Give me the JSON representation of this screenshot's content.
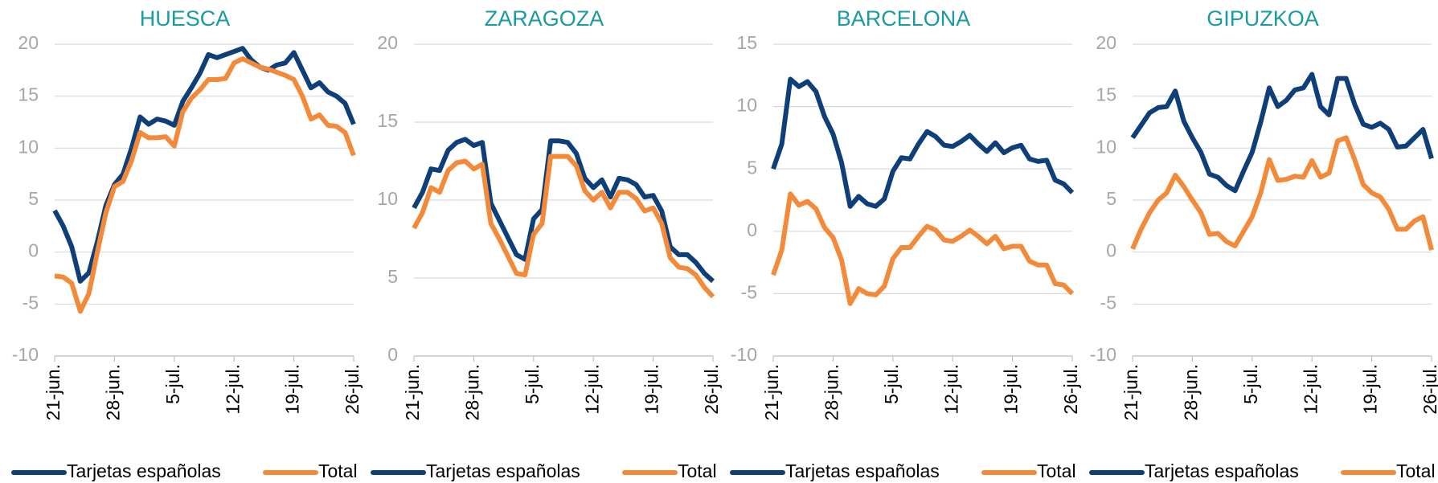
{
  "chart_data": [
    {
      "type": "line",
      "title": "HUESCA",
      "categories": [
        "21-jun.",
        null,
        null,
        null,
        null,
        null,
        null,
        "28-jun.",
        null,
        null,
        null,
        null,
        null,
        null,
        "5-jul.",
        null,
        null,
        null,
        null,
        null,
        null,
        "12-jul.",
        null,
        null,
        null,
        null,
        null,
        null,
        "19-jul.",
        null,
        null,
        null,
        null,
        null,
        null,
        "26-jul."
      ],
      "series": [
        {
          "name": "Tarjetas españolas",
          "color": "#0e3f78",
          "values": [
            4,
            2.5,
            0.5,
            -2.8,
            -2,
            1,
            4.5,
            6.5,
            7.5,
            10,
            13,
            12.3,
            12.8,
            12.6,
            12.2,
            14.5,
            15.8,
            17.2,
            19,
            18.7,
            19,
            19.3,
            19.6,
            18.5,
            17.8,
            17.5,
            18,
            18.2,
            19.2,
            17.5,
            15.8,
            16.3,
            15.4,
            15,
            14.3,
            12.3
          ]
        },
        {
          "name": "Total",
          "color": "#f28a3a",
          "values": [
            -2.3,
            -2.4,
            -3,
            -5.7,
            -4,
            0,
            3.8,
            6.3,
            6.8,
            8.8,
            11.5,
            11,
            11,
            11.1,
            10.2,
            13.5,
            14.8,
            15.6,
            16.6,
            16.6,
            16.7,
            18.2,
            18.6,
            18.2,
            17.8,
            17.6,
            17.3,
            17,
            16.6,
            15,
            12.8,
            13.2,
            12.2,
            12.1,
            11.5,
            9.3
          ]
        }
      ],
      "ylim": [
        -10,
        20
      ],
      "yticks": [
        -10,
        -5,
        0,
        5,
        10,
        15,
        20
      ],
      "grid": true
    },
    {
      "type": "line",
      "title": "ZARAGOZA",
      "categories": [
        "21-jun.",
        null,
        null,
        null,
        null,
        null,
        null,
        "28-jun.",
        null,
        null,
        null,
        null,
        null,
        null,
        "5-jul.",
        null,
        null,
        null,
        null,
        null,
        null,
        "12-jul.",
        null,
        null,
        null,
        null,
        null,
        null,
        "19-jul.",
        null,
        null,
        null,
        null,
        null,
        null,
        "26-jul."
      ],
      "series": [
        {
          "name": "Tarjetas españolas",
          "color": "#0e3f78",
          "values": [
            9.5,
            10.5,
            12,
            11.9,
            13.2,
            13.7,
            13.9,
            13.5,
            13.7,
            9.8,
            8.7,
            7.6,
            6.5,
            6.2,
            8.8,
            9.4,
            13.8,
            13.8,
            13.7,
            13,
            11.4,
            10.8,
            11.3,
            10.2,
            11.4,
            11.3,
            11,
            10.2,
            10.3,
            9.3,
            7,
            6.5,
            6.5,
            6,
            5.3,
            4.8
          ]
        },
        {
          "name": "Total",
          "color": "#f28a3a",
          "values": [
            8.2,
            9.2,
            10.8,
            10.5,
            11.9,
            12.4,
            12.5,
            12,
            12.3,
            8.5,
            7.5,
            6.4,
            5.3,
            5.2,
            7.8,
            8.5,
            12.8,
            12.8,
            12.8,
            12.2,
            10.6,
            10,
            10.5,
            9.5,
            10.5,
            10.5,
            10.1,
            9.3,
            9.5,
            8.5,
            6.3,
            5.7,
            5.6,
            5.2,
            4.4,
            3.8
          ]
        }
      ],
      "ylim": [
        0,
        20
      ],
      "yticks": [
        0,
        5,
        10,
        15,
        20
      ],
      "grid": true
    },
    {
      "type": "line",
      "title": "BARCELONA",
      "categories": [
        "21-jun.",
        null,
        null,
        null,
        null,
        null,
        null,
        "28-jun.",
        null,
        null,
        null,
        null,
        null,
        null,
        "5-jul.",
        null,
        null,
        null,
        null,
        null,
        null,
        "12-jul.",
        null,
        null,
        null,
        null,
        null,
        null,
        "19-jul.",
        null,
        null,
        null,
        null,
        null,
        null,
        "26-jul."
      ],
      "series": [
        {
          "name": "Tarjetas españolas",
          "color": "#0e3f78",
          "values": [
            5,
            7,
            12.2,
            11.6,
            12,
            11.2,
            9.2,
            7.8,
            5.5,
            2,
            2.8,
            2.2,
            2,
            2.6,
            4.8,
            5.9,
            5.8,
            7,
            8,
            7.6,
            6.9,
            6.8,
            7.2,
            7.7,
            7,
            6.4,
            7.1,
            6.3,
            6.7,
            6.9,
            5.8,
            5.6,
            5.7,
            4.1,
            3.8,
            3.1
          ]
        },
        {
          "name": "Total",
          "color": "#f28a3a",
          "values": [
            -3.5,
            -1.5,
            3,
            2.1,
            2.4,
            1.8,
            0.3,
            -0.5,
            -2.3,
            -5.8,
            -4.6,
            -5,
            -5.1,
            -4.4,
            -2.2,
            -1.3,
            -1.3,
            -0.4,
            0.4,
            0.1,
            -0.7,
            -0.8,
            -0.4,
            0.1,
            -0.4,
            -1,
            -0.4,
            -1.4,
            -1.2,
            -1.2,
            -2.4,
            -2.7,
            -2.7,
            -4.2,
            -4.3,
            -5
          ]
        }
      ],
      "ylim": [
        -10,
        15
      ],
      "yticks": [
        -10,
        -5,
        0,
        5,
        10,
        15
      ],
      "grid": true
    },
    {
      "type": "line",
      "title": "GIPUZKOA",
      "categories": [
        "21-jun.",
        null,
        null,
        null,
        null,
        null,
        null,
        "28-jun.",
        null,
        null,
        null,
        null,
        null,
        null,
        "5-jul.",
        null,
        null,
        null,
        null,
        null,
        null,
        "12-jul.",
        null,
        null,
        null,
        null,
        null,
        null,
        "19-jul.",
        null,
        null,
        null,
        null,
        null,
        null,
        "26-jul."
      ],
      "series": [
        {
          "name": "Tarjetas españolas",
          "color": "#0e3f78",
          "values": [
            11,
            12.2,
            13.4,
            13.9,
            14,
            15.5,
            12.6,
            11,
            9.6,
            7.5,
            7.2,
            6.4,
            5.9,
            7.8,
            9.6,
            12.5,
            15.8,
            14,
            14.6,
            15.6,
            15.8,
            17.1,
            14,
            13.2,
            16.7,
            16.7,
            14.2,
            12.3,
            12,
            12.4,
            11.8,
            10.1,
            10.2,
            11,
            11.8,
            9
          ]
        },
        {
          "name": "Total",
          "color": "#f28a3a",
          "values": [
            0.3,
            2.2,
            3.8,
            5,
            5.7,
            7.4,
            6.3,
            5,
            3.8,
            1.7,
            1.8,
            1,
            0.6,
            2,
            3.4,
            5.7,
            8.9,
            6.9,
            7,
            7.3,
            7.2,
            8.8,
            7.2,
            7.6,
            10.7,
            11,
            8.9,
            6.5,
            5.7,
            5.3,
            4.1,
            2.2,
            2.2,
            3,
            3.4,
            0.2
          ]
        }
      ],
      "ylim": [
        -10,
        20
      ],
      "yticks": [
        -10,
        -5,
        0,
        5,
        10,
        15,
        20
      ],
      "grid": true
    }
  ]
}
